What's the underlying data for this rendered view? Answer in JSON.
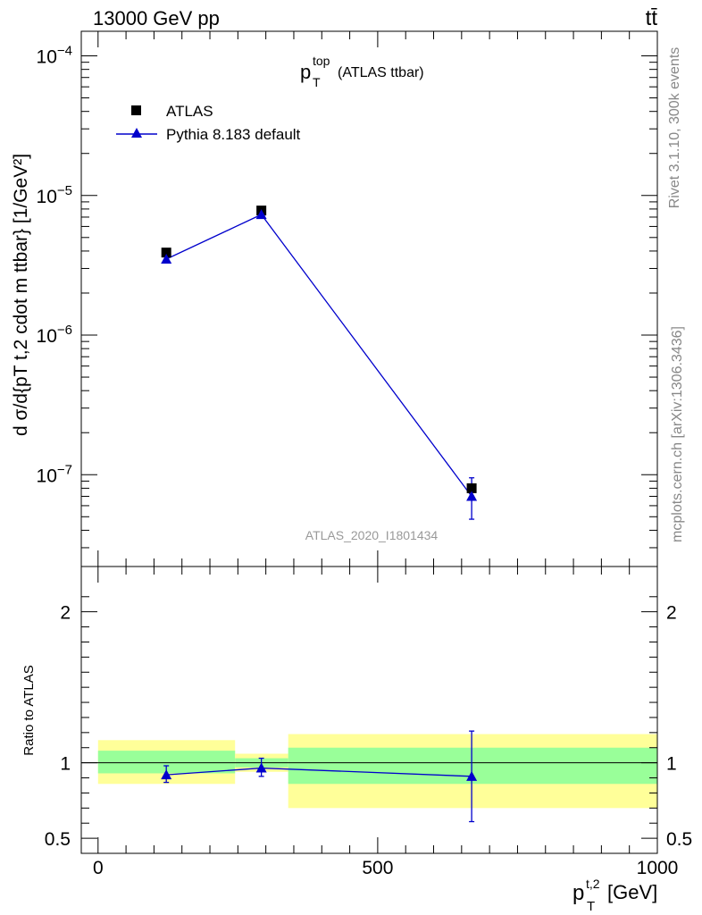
{
  "header": {
    "energy_label": "13000 GeV pp",
    "process_label": "tt̄"
  },
  "side_labels": {
    "version": "Rivet 3.1.10,  300k events",
    "source": "mcplots.cern.ch [arXiv:1306.3436]"
  },
  "colors": {
    "mc": "#0000cc",
    "data": "#000000",
    "band_inner": "#99ff99",
    "band_outer": "#ffff99"
  },
  "chart_data": [
    {
      "type": "scatter",
      "panel": "main",
      "title_main": "p",
      "title_sup": "top",
      "title_sub": "T",
      "title_suffix": "(ATLAS ttbar)",
      "analysis_tag": "ATLAS_2020_I1801434",
      "ylabel": "d σ/d{pT t,2 cdot m ttbar} [1/GeV²]",
      "yscale": "log",
      "ylim": [
        2.2e-08,
        0.00015
      ],
      "xlim": [
        -30,
        1000
      ],
      "y_ticks": [
        {
          "value": 0.0001,
          "base": "10",
          "exp": "−4"
        },
        {
          "value": 1e-05,
          "base": "10",
          "exp": "−5"
        },
        {
          "value": 1e-06,
          "base": "10",
          "exp": "−6"
        },
        {
          "value": 1e-07,
          "base": "10",
          "exp": "−7"
        }
      ],
      "legend": [
        {
          "name": "ATLAS",
          "marker": "square"
        },
        {
          "name": "Pythia 8.183 default",
          "marker": "triangle"
        }
      ],
      "series": [
        {
          "name": "ATLAS",
          "x": [
            122,
            292,
            668
          ],
          "y": [
            3.9e-06,
            7.8e-06,
            8e-08
          ],
          "x_bins": [
            [
              0,
              245
            ],
            [
              245,
              340
            ],
            [
              340,
              1000
            ]
          ]
        },
        {
          "name": "Pythia 8.183 default",
          "x": [
            122,
            292,
            668
          ],
          "y": [
            3.5e-06,
            7.3e-06,
            7e-08
          ],
          "y_err_low": [
            3.3e-06,
            7.1e-06,
            4.8e-08
          ],
          "y_err_high": [
            3.7e-06,
            7.5e-06,
            9.5e-08
          ]
        }
      ]
    },
    {
      "type": "scatter",
      "panel": "ratio",
      "ylabel": "Ratio to ATLAS",
      "xlabel": "p",
      "xlabel_sup": "t,2",
      "xlabel_sub": "T",
      "xlabel_unit": "[GeV]",
      "xlim": [
        -30,
        1000
      ],
      "ylim": [
        0.4,
        2.3
      ],
      "y_ticks": [
        {
          "value": 0.5,
          "label": "0.5"
        },
        {
          "value": 1,
          "label": "1"
        },
        {
          "value": 2,
          "label": "2"
        }
      ],
      "x_ticks": [
        {
          "value": 0,
          "label": "0"
        },
        {
          "value": 500,
          "label": "500"
        },
        {
          "value": 1000,
          "label": "1000"
        }
      ],
      "bands": [
        {
          "x": [
            0,
            245
          ],
          "inner": [
            0.93,
            1.08
          ],
          "outer": [
            0.86,
            1.15
          ]
        },
        {
          "x": [
            245,
            340
          ],
          "inner": [
            0.97,
            1.03
          ],
          "outer": [
            0.94,
            1.06
          ]
        },
        {
          "x": [
            340,
            1000
          ],
          "inner": [
            0.86,
            1.1
          ],
          "outer": [
            0.7,
            1.19
          ]
        }
      ],
      "series": [
        {
          "name": "Pythia 8.183 default",
          "x": [
            122,
            292,
            668
          ],
          "y": [
            0.92,
            0.965,
            0.91
          ],
          "y_err_low": [
            0.87,
            0.91,
            0.61
          ],
          "y_err_high": [
            0.98,
            1.03,
            1.21
          ]
        }
      ]
    }
  ]
}
